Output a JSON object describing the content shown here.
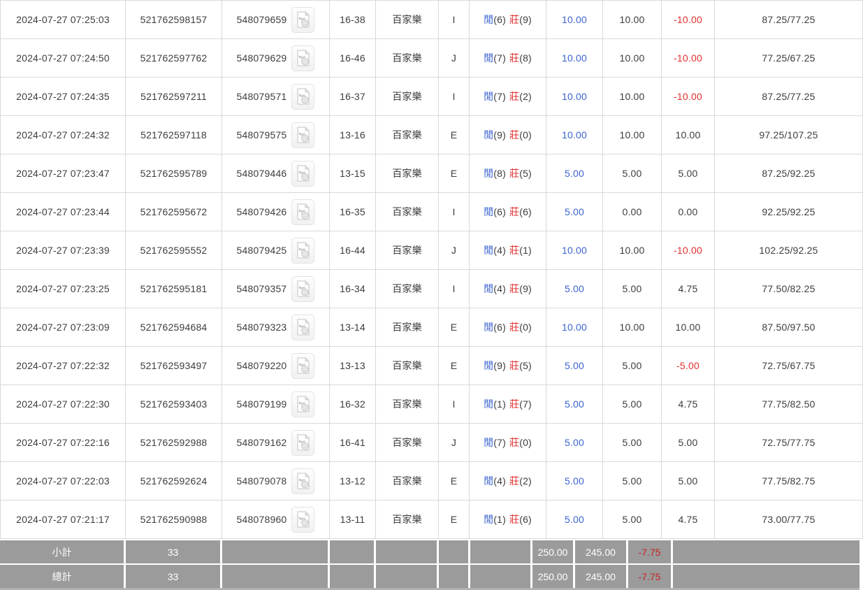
{
  "table": {
    "result_labels": {
      "player": "閒",
      "banker": "莊"
    },
    "rows": [
      {
        "time": "2024-07-27 07:25:03",
        "bet_id": "521762598157",
        "round_id": "548079659",
        "table_no": "16-38",
        "game": "百家樂",
        "seat": "I",
        "player_points": "6",
        "banker_points": "9",
        "bet": "10.00",
        "valid": "10.00",
        "win_loss": "-10.00",
        "balance": "87.25/77.25"
      },
      {
        "time": "2024-07-27 07:24:50",
        "bet_id": "521762597762",
        "round_id": "548079629",
        "table_no": "16-46",
        "game": "百家樂",
        "seat": "J",
        "player_points": "7",
        "banker_points": "8",
        "bet": "10.00",
        "valid": "10.00",
        "win_loss": "-10.00",
        "balance": "77.25/67.25"
      },
      {
        "time": "2024-07-27 07:24:35",
        "bet_id": "521762597211",
        "round_id": "548079571",
        "table_no": "16-37",
        "game": "百家樂",
        "seat": "I",
        "player_points": "7",
        "banker_points": "2",
        "bet": "10.00",
        "valid": "10.00",
        "win_loss": "-10.00",
        "balance": "87.25/77.25"
      },
      {
        "time": "2024-07-27 07:24:32",
        "bet_id": "521762597118",
        "round_id": "548079575",
        "table_no": "13-16",
        "game": "百家樂",
        "seat": "E",
        "player_points": "9",
        "banker_points": "0",
        "bet": "10.00",
        "valid": "10.00",
        "win_loss": "10.00",
        "balance": "97.25/107.25"
      },
      {
        "time": "2024-07-27 07:23:47",
        "bet_id": "521762595789",
        "round_id": "548079446",
        "table_no": "13-15",
        "game": "百家樂",
        "seat": "E",
        "player_points": "8",
        "banker_points": "5",
        "bet": "5.00",
        "valid": "5.00",
        "win_loss": "5.00",
        "balance": "87.25/92.25"
      },
      {
        "time": "2024-07-27 07:23:44",
        "bet_id": "521762595672",
        "round_id": "548079426",
        "table_no": "16-35",
        "game": "百家樂",
        "seat": "I",
        "player_points": "6",
        "banker_points": "6",
        "bet": "5.00",
        "valid": "0.00",
        "win_loss": "0.00",
        "balance": "92.25/92.25"
      },
      {
        "time": "2024-07-27 07:23:39",
        "bet_id": "521762595552",
        "round_id": "548079425",
        "table_no": "16-44",
        "game": "百家樂",
        "seat": "J",
        "player_points": "4",
        "banker_points": "1",
        "bet": "10.00",
        "valid": "10.00",
        "win_loss": "-10.00",
        "balance": "102.25/92.25"
      },
      {
        "time": "2024-07-27 07:23:25",
        "bet_id": "521762595181",
        "round_id": "548079357",
        "table_no": "16-34",
        "game": "百家樂",
        "seat": "I",
        "player_points": "4",
        "banker_points": "9",
        "bet": "5.00",
        "valid": "5.00",
        "win_loss": "4.75",
        "balance": "77.50/82.25"
      },
      {
        "time": "2024-07-27 07:23:09",
        "bet_id": "521762594684",
        "round_id": "548079323",
        "table_no": "13-14",
        "game": "百家樂",
        "seat": "E",
        "player_points": "6",
        "banker_points": "0",
        "bet": "10.00",
        "valid": "10.00",
        "win_loss": "10.00",
        "balance": "87.50/97.50"
      },
      {
        "time": "2024-07-27 07:22:32",
        "bet_id": "521762593497",
        "round_id": "548079220",
        "table_no": "13-13",
        "game": "百家樂",
        "seat": "E",
        "player_points": "9",
        "banker_points": "5",
        "bet": "5.00",
        "valid": "5.00",
        "win_loss": "-5.00",
        "balance": "72.75/67.75"
      },
      {
        "time": "2024-07-27 07:22:30",
        "bet_id": "521762593403",
        "round_id": "548079199",
        "table_no": "16-32",
        "game": "百家樂",
        "seat": "I",
        "player_points": "1",
        "banker_points": "7",
        "bet": "5.00",
        "valid": "5.00",
        "win_loss": "4.75",
        "balance": "77.75/82.50"
      },
      {
        "time": "2024-07-27 07:22:16",
        "bet_id": "521762592988",
        "round_id": "548079162",
        "table_no": "16-41",
        "game": "百家樂",
        "seat": "J",
        "player_points": "7",
        "banker_points": "0",
        "bet": "5.00",
        "valid": "5.00",
        "win_loss": "5.00",
        "balance": "72.75/77.75"
      },
      {
        "time": "2024-07-27 07:22:03",
        "bet_id": "521762592624",
        "round_id": "548079078",
        "table_no": "13-12",
        "game": "百家樂",
        "seat": "E",
        "player_points": "4",
        "banker_points": "2",
        "bet": "5.00",
        "valid": "5.00",
        "win_loss": "5.00",
        "balance": "77.75/82.75"
      },
      {
        "time": "2024-07-27 07:21:17",
        "bet_id": "521762590988",
        "round_id": "548078960",
        "table_no": "13-11",
        "game": "百家樂",
        "seat": "E",
        "player_points": "1",
        "banker_points": "6",
        "bet": "5.00",
        "valid": "5.00",
        "win_loss": "4.75",
        "balance": "73.00/77.75"
      }
    ],
    "footer_rows": [
      {
        "label": "小計",
        "count": "33",
        "bet": "250.00",
        "valid": "245.00",
        "win_loss": "-7.75"
      },
      {
        "label": "總計",
        "count": "33",
        "bet": "250.00",
        "valid": "245.00",
        "win_loss": "-7.75"
      }
    ],
    "icons": {
      "video": "video-file-icon"
    }
  },
  "colors": {
    "link_blue": "#3c64cf",
    "loss_red": "#e02f2f",
    "footer_bg": "#9b9b9b",
    "footer_red": "#c52525",
    "border": "#d9d9d9",
    "text": "#3d3d3d"
  }
}
